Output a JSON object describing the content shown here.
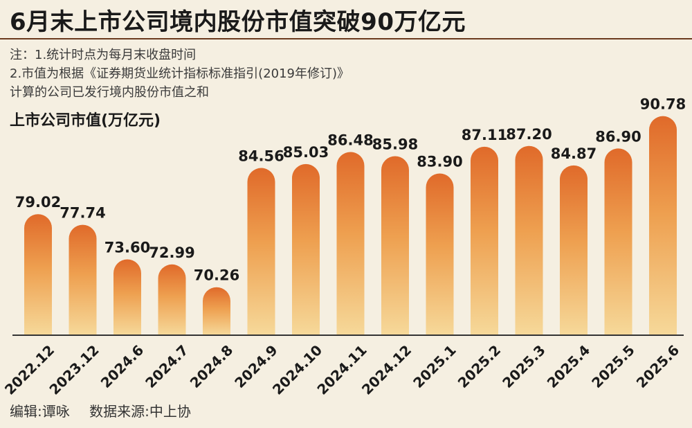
{
  "header": {
    "title": "6月末上市公司境内股份市值突破90万亿元"
  },
  "notes": {
    "line1": "注：1.统计时点为每月末收盘时间",
    "line2": "2.市值为根据《证券期货业统计指标标准指引(2019年修订)》",
    "line3": "计算的公司已发行境内股份市值之和"
  },
  "footer": {
    "editor": "编辑:谭咏",
    "source": "数据来源:中上协"
  },
  "colors": {
    "bar_top": "#e06a2a",
    "bar_bottom": "#f6d99a",
    "background": "#f5efe1",
    "axis": "#333333"
  },
  "chart_data": {
    "type": "bar",
    "title": "6月末上市公司境内股份市值突破90万亿元",
    "ylabel": "上市公司市值(万亿元)",
    "xlabel": "",
    "categories": [
      "2022.12",
      "2023.12",
      "2024.6",
      "2024.7",
      "2024.8",
      "2024.9",
      "2024.10",
      "2024.11",
      "2024.12",
      "2025.1",
      "2025.2",
      "2025.3",
      "2025.4",
      "2025.5",
      "2025.6"
    ],
    "values": [
      79.02,
      77.74,
      73.6,
      72.99,
      70.26,
      84.56,
      85.03,
      86.48,
      85.98,
      83.9,
      87.11,
      87.2,
      84.87,
      86.9,
      90.78
    ],
    "value_labels": [
      "79.02",
      "77.74",
      "73.60",
      "72.99",
      "70.26",
      "84.56",
      "85.03",
      "86.48",
      "85.98",
      "83.90",
      "87.11",
      "87.20",
      "84.87",
      "86.90",
      "90.78"
    ],
    "ylim": [
      64.5,
      92
    ],
    "grid": false,
    "legend": "none"
  }
}
